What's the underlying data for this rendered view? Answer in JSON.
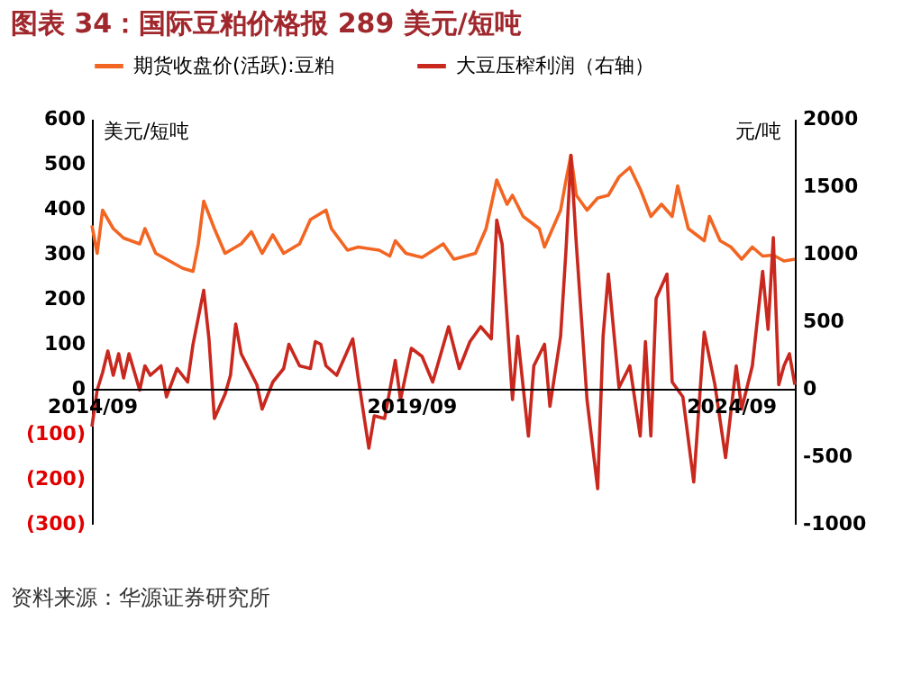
{
  "chart_data": {
    "type": "line",
    "title": "图表 34：国际豆粕价格报 289 美元/短吨",
    "ylabel": "美元/短吨",
    "y2label": "元/吨",
    "annotations": [
      "资料来源：华源证券研究所"
    ],
    "legend": "top",
    "grid": false,
    "line_style": "solid",
    "marker": "none",
    "xlim": [
      "2014-09",
      "2025-09"
    ],
    "xticks": [
      {
        "value": "2014-09",
        "label": "2014/09"
      },
      {
        "value": "2019-09",
        "label": "2019/09"
      },
      {
        "value": "2024-09",
        "label": "2024/09"
      }
    ],
    "ylim": [
      -300,
      600
    ],
    "yticks": [
      {
        "value": -300,
        "label": "(300)"
      },
      {
        "value": -200,
        "label": "(200)"
      },
      {
        "value": -100,
        "label": "(100)"
      },
      0,
      100,
      200,
      300,
      400,
      500,
      600
    ],
    "y2lim": [
      -1000,
      2000
    ],
    "y2ticks": [
      -1000,
      -500,
      0,
      500,
      1000,
      1500,
      2000
    ],
    "series": [
      {
        "name": "期货收盘价(活跃):豆粕",
        "color": "#f26522",
        "x": [
          "2014-09",
          "2014-10",
          "2014-11",
          "2015-01",
          "2015-03",
          "2015-06",
          "2015-07",
          "2015-09",
          "2015-11",
          "2016-02",
          "2016-04",
          "2016-05",
          "2016-06",
          "2016-08",
          "2016-10",
          "2017-01",
          "2017-03",
          "2017-05",
          "2017-07",
          "2017-09",
          "2017-12",
          "2018-02",
          "2018-05",
          "2018-06",
          "2018-09",
          "2018-11",
          "2019-03",
          "2019-05",
          "2019-06",
          "2019-08",
          "2019-11",
          "2020-03",
          "2020-05",
          "2020-09",
          "2020-11",
          "2021-01",
          "2021-03",
          "2021-04",
          "2021-06",
          "2021-09",
          "2021-10",
          "2022-01",
          "2022-02",
          "2022-03",
          "2022-04",
          "2022-06",
          "2022-08",
          "2022-10",
          "2022-12",
          "2023-02",
          "2023-04",
          "2023-06",
          "2023-08",
          "2023-10",
          "2023-11",
          "2024-01",
          "2024-04",
          "2024-05",
          "2024-07",
          "2024-09",
          "2024-11",
          "2025-01",
          "2025-03",
          "2025-05",
          "2025-07",
          "2025-09"
        ],
        "values": [
          363,
          301,
          397,
          356,
          335,
          322,
          356,
          301,
          288,
          268,
          261,
          322,
          417,
          356,
          301,
          322,
          349,
          301,
          342,
          301,
          322,
          376,
          397,
          356,
          308,
          315,
          308,
          295,
          329,
          301,
          292,
          322,
          288,
          301,
          356,
          464,
          410,
          430,
          383,
          356,
          315,
          397,
          464,
          519,
          430,
          397,
          424,
          430,
          471,
          492,
          444,
          383,
          410,
          383,
          451,
          356,
          329,
          383,
          329,
          315,
          288,
          315,
          295,
          297,
          284,
          288
        ]
      },
      {
        "name": "大豆压榨利润（右轴）",
        "color": "#c8281e",
        "axis": "y2",
        "x": [
          "2014-09",
          "2014-10",
          "2014-11",
          "2014-12",
          "2015-01",
          "2015-02",
          "2015-03",
          "2015-04",
          "2015-06",
          "2015-07",
          "2015-08",
          "2015-10",
          "2015-11",
          "2016-01",
          "2016-03",
          "2016-04",
          "2016-06",
          "2016-07",
          "2016-08",
          "2016-10",
          "2016-11",
          "2016-12",
          "2017-01",
          "2017-04",
          "2017-05",
          "2017-07",
          "2017-09",
          "2017-10",
          "2017-12",
          "2018-02",
          "2018-03",
          "2018-04",
          "2018-05",
          "2018-07",
          "2018-10",
          "2018-11",
          "2019-01",
          "2019-02",
          "2019-04",
          "2019-06",
          "2019-07",
          "2019-09",
          "2019-11",
          "2020-01",
          "2020-04",
          "2020-06",
          "2020-08",
          "2020-10",
          "2020-12",
          "2021-01",
          "2021-02",
          "2021-04",
          "2021-05",
          "2021-07",
          "2021-08",
          "2021-10",
          "2021-11",
          "2022-01",
          "2022-02",
          "2022-03",
          "2022-04",
          "2022-06",
          "2022-08",
          "2022-09",
          "2022-10",
          "2022-12",
          "2023-02",
          "2023-04",
          "2023-05",
          "2023-06",
          "2023-07",
          "2023-09",
          "2023-10",
          "2023-12",
          "2024-02",
          "2024-04",
          "2024-06",
          "2024-08",
          "2024-10",
          "2024-11",
          "2025-01",
          "2025-03",
          "2025-04",
          "2025-05",
          "2025-06",
          "2025-07",
          "2025-08",
          "2025-09"
        ],
        "values": [
          -280,
          -10,
          120,
          280,
          100,
          260,
          80,
          260,
          -10,
          170,
          100,
          170,
          -60,
          150,
          50,
          330,
          730,
          370,
          -220,
          -40,
          100,
          480,
          260,
          30,
          -150,
          50,
          150,
          330,
          170,
          150,
          350,
          330,
          170,
          100,
          370,
          80,
          -440,
          -200,
          -220,
          210,
          -80,
          300,
          240,
          50,
          460,
          150,
          350,
          460,
          370,
          1250,
          1070,
          -80,
          390,
          -350,
          170,
          330,
          -130,
          390,
          1030,
          1730,
          1070,
          -80,
          -740,
          390,
          850,
          10,
          170,
          -350,
          350,
          -350,
          670,
          850,
          50,
          -60,
          -690,
          420,
          30,
          -510,
          170,
          -150,
          170,
          870,
          440,
          1120,
          30,
          170,
          260,
          30
        ]
      }
    ]
  }
}
